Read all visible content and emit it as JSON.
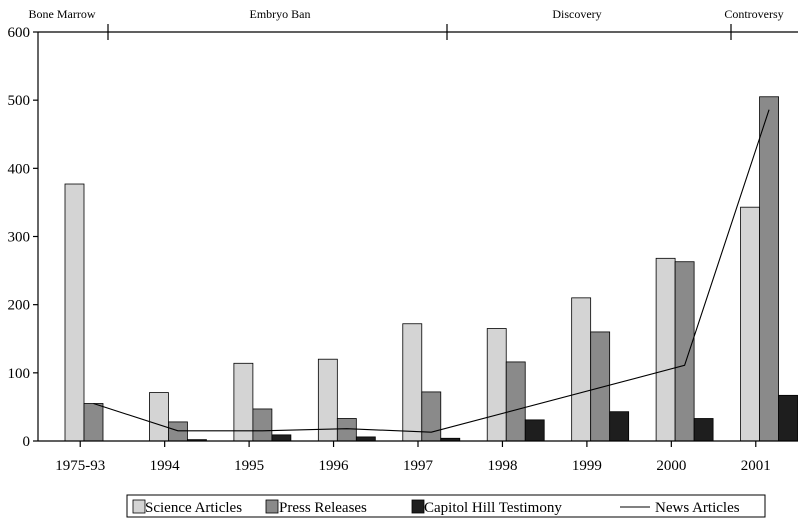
{
  "chart_data": {
    "type": "bar",
    "categories": [
      "1975-93",
      "1994",
      "1995",
      "1996",
      "1997",
      "1998",
      "1999",
      "2000",
      "2001"
    ],
    "series": [
      {
        "name": "Science Articles",
        "kind": "bar",
        "color": "#d4d4d4",
        "values": [
          377,
          71,
          114,
          120,
          172,
          165,
          210,
          268,
          343
        ]
      },
      {
        "name": "Press Releases",
        "kind": "bar",
        "color": "#8a8a8a",
        "values": [
          55,
          28,
          47,
          33,
          72,
          116,
          160,
          263,
          505
        ]
      },
      {
        "name": "Capitol Hill Testimony",
        "kind": "bar",
        "color": "#1e1e1e",
        "values": [
          0,
          2,
          9,
          6,
          4,
          31,
          43,
          33,
          67
        ]
      },
      {
        "name": "News Articles",
        "kind": "line",
        "color": "#000000",
        "values": [
          55,
          15,
          15,
          18,
          13,
          null,
          null,
          111,
          486
        ]
      }
    ],
    "yticks": [
      "0",
      "100",
      "200",
      "300",
      "400",
      "500",
      "600"
    ],
    "ylim": [
      0,
      600
    ],
    "grid": false,
    "legend_position": "bottom",
    "annotations": [
      "Bone Marrow",
      "Embryo Ban",
      "Discovery",
      "Controversy"
    ]
  }
}
